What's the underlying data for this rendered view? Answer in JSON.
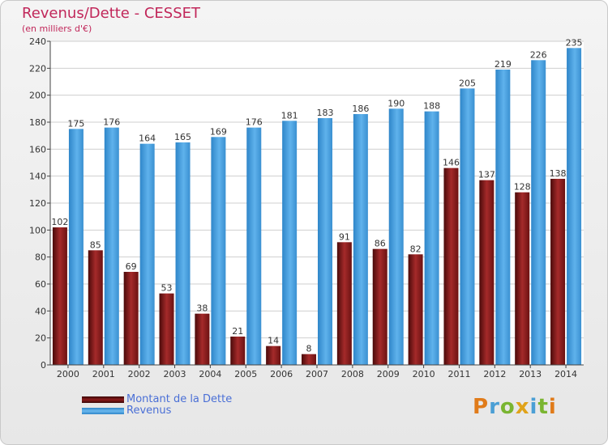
{
  "chart_data": {
    "type": "bar",
    "title": "Revenus/Dette - CESSET",
    "subtitle": "(en milliers d'€)",
    "categories": [
      "2000",
      "2001",
      "2002",
      "2003",
      "2004",
      "2005",
      "2006",
      "2007",
      "2008",
      "2009",
      "2010",
      "2011",
      "2012",
      "2013",
      "2014"
    ],
    "series": [
      {
        "name": "Montant de la Dette",
        "color": "#8b1a1a",
        "values": [
          102,
          85,
          69,
          53,
          38,
          21,
          14,
          8,
          91,
          86,
          82,
          146,
          137,
          128,
          138
        ]
      },
      {
        "name": "Revenus",
        "color": "#4ea3e0",
        "values": [
          175,
          176,
          164,
          165,
          169,
          176,
          181,
          183,
          186,
          190,
          188,
          205,
          219,
          226,
          235
        ]
      }
    ],
    "ylim": [
      0,
      240
    ],
    "yticks": [
      0,
      20,
      40,
      60,
      80,
      100,
      120,
      140,
      160,
      180,
      200,
      220,
      240
    ],
    "grid": true,
    "legend_position": "bottom-left"
  },
  "branding": {
    "logo_text": "Proxiti"
  }
}
